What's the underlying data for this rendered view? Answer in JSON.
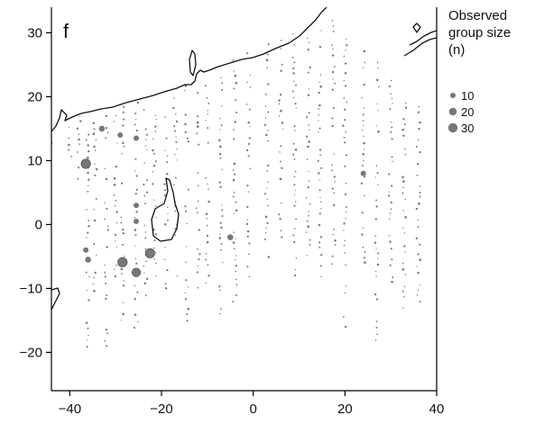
{
  "panel_label": "f",
  "legend": {
    "title_lines": [
      "Observed",
      "group size",
      "(n)"
    ],
    "entries": [
      {
        "label": "10",
        "n": 10
      },
      {
        "label": "20",
        "n": 20
      },
      {
        "label": "30",
        "n": 30
      }
    ]
  },
  "colors": {
    "coastline": "#111111",
    "point": "#777777",
    "axis": "#000000"
  },
  "chart_data": {
    "type": "scatter",
    "title": "",
    "xlabel": "",
    "ylabel": "",
    "xlim": [
      -44,
      40
    ],
    "ylim": [
      -26,
      34
    ],
    "x_ticks": [
      -40,
      -20,
      0,
      20,
      40
    ],
    "y_ticks": [
      -20,
      -10,
      0,
      10,
      20,
      30
    ],
    "x_tick_labels": [
      "−40",
      "−20",
      "0",
      "20",
      "40"
    ],
    "y_tick_labels": [
      "−20",
      "−10",
      "0",
      "10",
      "20",
      "30"
    ],
    "grid": false,
    "legend_position": "right",
    "size_encoding": "observed group size (n)",
    "highlighted_points": [
      {
        "x": -36.5,
        "y": 9.5,
        "n": 30
      },
      {
        "x": -28.5,
        "y": -5.9,
        "n": 30
      },
      {
        "x": -25.5,
        "y": -7.5,
        "n": 25
      },
      {
        "x": -22.5,
        "y": -4.5,
        "n": 30
      },
      {
        "x": -33.0,
        "y": 15.0,
        "n": 12
      },
      {
        "x": -36.0,
        "y": -5.5,
        "n": 12
      },
      {
        "x": -36.5,
        "y": -4.0,
        "n": 10
      },
      {
        "x": -25.5,
        "y": 3.0,
        "n": 10
      },
      {
        "x": -25.5,
        "y": 0.5,
        "n": 10
      },
      {
        "x": -25.5,
        "y": 13.5,
        "n": 10
      },
      {
        "x": -5.0,
        "y": -2.0,
        "n": 12
      },
      {
        "x": -29.0,
        "y": 14.0,
        "n": 10
      },
      {
        "x": 24.0,
        "y": 8.0,
        "n": 10
      }
    ],
    "survey_tracks": [
      {
        "x": -44,
        "y_start": 12,
        "y_end": 16
      },
      {
        "x": -40,
        "y_start": 9,
        "y_end": 16
      },
      {
        "x": -38,
        "y_start": 7,
        "y_end": 17
      },
      {
        "x": -36,
        "y_start": -20,
        "y_end": 15
      },
      {
        "x": -34.5,
        "y_start": -12,
        "y_end": 16
      },
      {
        "x": -32,
        "y_start": -19,
        "y_end": 18
      },
      {
        "x": -30,
        "y_start": -8,
        "y_end": 18
      },
      {
        "x": -28.5,
        "y_start": -15,
        "y_end": 19
      },
      {
        "x": -25.5,
        "y_start": -16,
        "y_end": 19.5
      },
      {
        "x": -23.5,
        "y_start": -11,
        "y_end": 18
      },
      {
        "x": -21.5,
        "y_start": -8,
        "y_end": 18
      },
      {
        "x": -19,
        "y_start": -10,
        "y_end": 18
      },
      {
        "x": -17,
        "y_start": -8,
        "y_end": 20
      },
      {
        "x": -14.5,
        "y_start": -16,
        "y_end": 22
      },
      {
        "x": -12,
        "y_start": -10,
        "y_end": 21
      },
      {
        "x": -10,
        "y_start": -9,
        "y_end": 24
      },
      {
        "x": -7,
        "y_start": -14,
        "y_end": 25
      },
      {
        "x": -4,
        "y_start": -12,
        "y_end": 26
      },
      {
        "x": -1,
        "y_start": -10,
        "y_end": 28
      },
      {
        "x": 3,
        "y_start": -5,
        "y_end": 29
      },
      {
        "x": 6,
        "y_start": -2,
        "y_end": 30
      },
      {
        "x": 9,
        "y_start": -8,
        "y_end": 30
      },
      {
        "x": 12,
        "y_start": -5,
        "y_end": 31
      },
      {
        "x": 14.5,
        "y_start": -10,
        "y_end": 31
      },
      {
        "x": 17.5,
        "y_start": -6,
        "y_end": 32
      },
      {
        "x": 20,
        "y_start": -17,
        "y_end": 30
      },
      {
        "x": 24,
        "y_start": -7,
        "y_end": 28
      },
      {
        "x": 27,
        "y_start": -18,
        "y_end": 26
      },
      {
        "x": 30,
        "y_start": -10,
        "y_end": 24
      },
      {
        "x": 33,
        "y_start": -15,
        "y_end": 20
      },
      {
        "x": 36,
        "y_start": -12,
        "y_end": 19
      }
    ]
  }
}
